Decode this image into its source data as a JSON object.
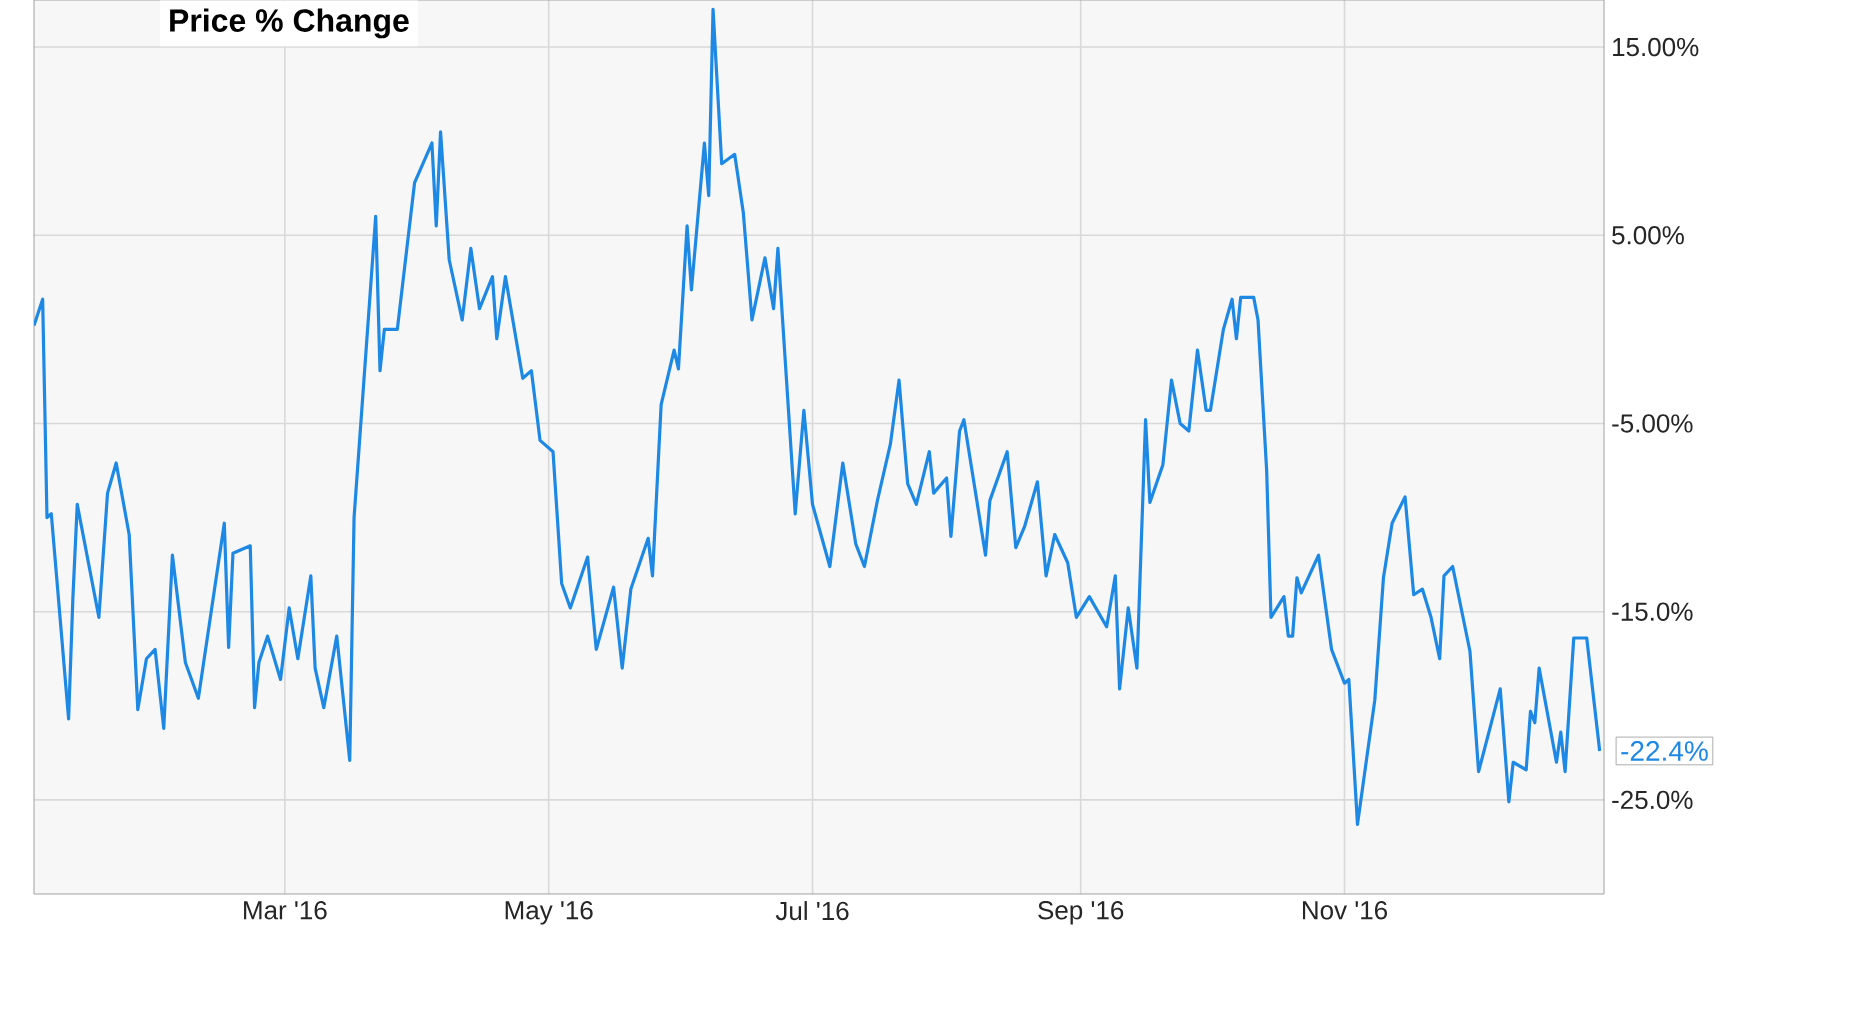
{
  "chart_data": {
    "type": "line",
    "title": "Price % Change",
    "x": [
      "2016-01-03",
      "2016-01-05",
      "2016-01-06",
      "2016-01-07",
      "2016-01-11",
      "2016-01-12",
      "2016-01-13",
      "2016-01-18",
      "2016-01-20",
      "2016-01-22",
      "2016-01-25",
      "2016-01-27",
      "2016-01-29",
      "2016-01-31",
      "2016-02-02",
      "2016-02-04",
      "2016-02-07",
      "2016-02-10",
      "2016-02-16",
      "2016-02-17",
      "2016-02-18",
      "2016-02-22",
      "2016-02-23",
      "2016-02-24",
      "2016-02-26",
      "2016-02-29",
      "2016-03-02",
      "2016-03-04",
      "2016-03-07",
      "2016-03-08",
      "2016-03-10",
      "2016-03-13",
      "2016-03-16",
      "2016-03-17",
      "2016-03-22",
      "2016-03-23",
      "2016-03-24",
      "2016-03-27",
      "2016-03-31",
      "2016-04-04",
      "2016-04-05",
      "2016-04-06",
      "2016-04-08",
      "2016-04-11",
      "2016-04-13",
      "2016-04-15",
      "2016-04-18",
      "2016-04-19",
      "2016-04-21",
      "2016-04-25",
      "2016-04-27",
      "2016-04-29",
      "2016-05-02",
      "2016-05-04",
      "2016-05-06",
      "2016-05-10",
      "2016-05-12",
      "2016-05-16",
      "2016-05-18",
      "2016-05-20",
      "2016-05-24",
      "2016-05-25",
      "2016-05-27",
      "2016-05-30",
      "2016-05-31",
      "2016-06-02",
      "2016-06-03",
      "2016-06-06",
      "2016-06-07",
      "2016-06-08",
      "2016-06-10",
      "2016-06-13",
      "2016-06-15",
      "2016-06-17",
      "2016-06-20",
      "2016-06-22",
      "2016-06-23",
      "2016-06-27",
      "2016-06-29",
      "2016-07-01",
      "2016-07-05",
      "2016-07-08",
      "2016-07-11",
      "2016-07-13",
      "2016-07-16",
      "2016-07-19",
      "2016-07-21",
      "2016-07-23",
      "2016-07-25",
      "2016-07-28",
      "2016-07-29",
      "2016-08-01",
      "2016-08-02",
      "2016-08-04",
      "2016-08-05",
      "2016-08-10",
      "2016-08-11",
      "2016-08-15",
      "2016-08-17",
      "2016-08-19",
      "2016-08-22",
      "2016-08-24",
      "2016-08-26",
      "2016-08-29",
      "2016-08-31",
      "2016-09-03",
      "2016-09-07",
      "2016-09-09",
      "2016-09-10",
      "2016-09-12",
      "2016-09-14",
      "2016-09-16",
      "2016-09-17",
      "2016-09-20",
      "2016-09-22",
      "2016-09-24",
      "2016-09-26",
      "2016-09-28",
      "2016-09-30",
      "2016-10-01",
      "2016-10-04",
      "2016-10-06",
      "2016-10-07",
      "2016-10-08",
      "2016-10-11",
      "2016-10-12",
      "2016-10-14",
      "2016-10-15",
      "2016-10-18",
      "2016-10-19",
      "2016-10-20",
      "2016-10-21",
      "2016-10-22",
      "2016-10-26",
      "2016-10-29",
      "2016-11-01",
      "2016-11-02",
      "2016-11-04",
      "2016-11-08",
      "2016-11-10",
      "2016-11-12",
      "2016-11-15",
      "2016-11-17",
      "2016-11-19",
      "2016-11-21",
      "2016-11-23",
      "2016-11-24",
      "2016-11-26",
      "2016-11-30",
      "2016-12-02",
      "2016-12-07",
      "2016-12-09",
      "2016-12-10",
      "2016-12-13",
      "2016-12-14",
      "2016-12-15",
      "2016-12-16",
      "2016-12-20",
      "2016-12-21",
      "2016-12-22",
      "2016-12-24",
      "2016-12-27",
      "2016-12-30"
    ],
    "values": [
      0.2,
      1.6,
      -10,
      -9.8,
      -20.7,
      -14.2,
      -9.3,
      -15.3,
      -8.7,
      -7.1,
      -10.9,
      -20.2,
      -17.5,
      -17,
      -21.2,
      -12,
      -17.7,
      -19.6,
      -10.3,
      -16.9,
      -11.9,
      -11.5,
      -20.1,
      -17.7,
      -16.3,
      -18.6,
      -14.8,
      -17.5,
      -13.1,
      -18,
      -20.1,
      -16.3,
      -22.9,
      -10,
      6,
      -2.2,
      0,
      0,
      7.8,
      9.9,
      5.5,
      10.5,
      3.7,
      0.5,
      4.3,
      1.1,
      2.8,
      -0.5,
      2.8,
      -2.6,
      -2.2,
      -5.9,
      -6.5,
      -13.5,
      -14.8,
      -12.1,
      -17,
      -13.7,
      -18,
      -13.8,
      -11.1,
      -13.1,
      -4,
      -1.1,
      -2.1,
      5.5,
      2.1,
      9.9,
      7.1,
      17,
      8.8,
      9.3,
      6.2,
      0.5,
      3.8,
      1.1,
      4.3,
      -9.8,
      -4.3,
      -9.3,
      -12.6,
      -7.1,
      -11.4,
      -12.6,
      -9.1,
      -6.1,
      -2.7,
      -8.2,
      -9.3,
      -6.5,
      -8.7,
      -7.9,
      -11,
      -5.4,
      -4.8,
      -12,
      -9.1,
      -6.5,
      -11.6,
      -10.5,
      -8.1,
      -13.1,
      -10.9,
      -12.4,
      -15.3,
      -14.2,
      -15.8,
      -13.1,
      -19.1,
      -14.8,
      -18,
      -4.8,
      -9.2,
      -7.2,
      -2.7,
      -5,
      -5.4,
      -1.1,
      -4.3,
      -4.3,
      0,
      1.6,
      -0.5,
      1.7,
      1.7,
      0.5,
      -7.5,
      -15.3,
      -14.2,
      -16.3,
      -16.3,
      -13.2,
      -14,
      -12,
      -17,
      -18.8,
      -18.6,
      -26.3,
      -19.7,
      -13.2,
      -10.3,
      -8.9,
      -14.1,
      -13.8,
      -15.3,
      -17.5,
      -13.1,
      -12.6,
      -17.1,
      -23.5,
      -19.1,
      -25.1,
      -23,
      -23.4,
      -20.3,
      -20.9,
      -18,
      -23,
      -21.4,
      -23.5,
      -16.4,
      -16.4,
      -22.4
    ],
    "color": "#1e88e5",
    "xlim": [
      "2016-01-03",
      "2016-12-31"
    ],
    "xticks": [
      {
        "value": "2016-03-01",
        "label": "Mar '16"
      },
      {
        "value": "2016-05-01",
        "label": "May '16"
      },
      {
        "value": "2016-07-01",
        "label": "Jul '16"
      },
      {
        "value": "2016-09-01",
        "label": "Sep '16"
      },
      {
        "value": "2016-11-01",
        "label": "Nov '16"
      }
    ],
    "ylim": [
      -30,
      17.5
    ],
    "yticks": [
      {
        "value": 15,
        "label": "15.00%"
      },
      {
        "value": 5,
        "label": "5.00%"
      },
      {
        "value": -5,
        "label": "-5.00%"
      },
      {
        "value": -15,
        "label": "-15.0%"
      },
      {
        "value": -25,
        "label": "-25.0%"
      }
    ],
    "grid": true,
    "marker": "none",
    "line_style": "solid",
    "annotations": [
      {
        "text": "-22.4%",
        "x": "2016-12-30",
        "y": -22.4
      }
    ]
  }
}
